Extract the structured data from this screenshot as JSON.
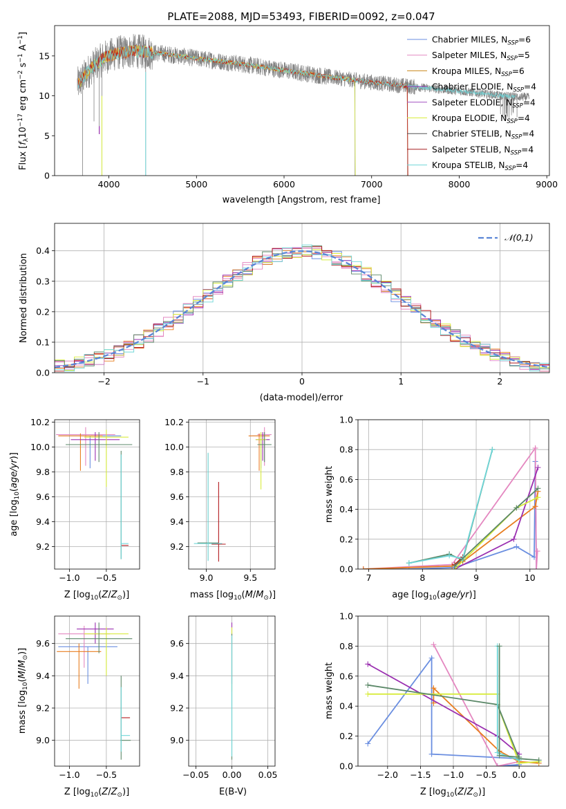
{
  "figure": {
    "title": "PLATE=2088, MJD=53493, FIBERID=0092, z=0.047"
  },
  "colors": {
    "chabrier_miles": "#6a8ee0",
    "salpeter_miles": "#e487c0",
    "kroupa_miles": "#e87d1f",
    "chabrier_elodie": "#9a2fb0",
    "salpeter_elodie": "#e487c0",
    "kroupa_elodie": "#d8ec3c",
    "chabrier_stelib": "#5b8868",
    "salpeter_stelib": "#b3191c",
    "kroupa_stelib": "#6fd6d8",
    "spectrum": "#808080"
  },
  "chart_data": [
    {
      "id": "spectrum",
      "type": "line",
      "title": "PLATE=2088, MJD=53493, FIBERID=0092, z=0.047",
      "xlabel": "wavelength [Angstrom, rest frame]",
      "ylabel": "Flux [f_λ 10^-17 erg cm^-2 s^-1 A^-1]",
      "xlim": [
        3380,
        9030
      ],
      "ylim": [
        0,
        18.8
      ],
      "xticks": [
        4000,
        5000,
        6000,
        7000,
        8000,
        9000
      ],
      "yticks": [
        0,
        5,
        10,
        15
      ],
      "grid": false,
      "legend_loc": "upper right",
      "legend": [
        "Chabrier MILES, N_SSP=6",
        "Salpeter MILES, N_SSP=5",
        "Kroupa MILES, N_SSP=6",
        "Chabrier ELODIE, N_SSP=4",
        "Salpeter ELODIE, N_SSP=4",
        "Kroupa ELODIE, N_SSP=4",
        "Chabrier STELIB, N_SSP=4",
        "Salpeter STELIB, N_SSP=4",
        "Kroupa STELIB, N_SSP=4"
      ],
      "continuum": {
        "x": [
          3650,
          3800,
          3950,
          4100,
          4300,
          4600,
          5000,
          5500,
          6000,
          6500,
          7000,
          7500,
          8000,
          8500,
          8800
        ],
        "y": [
          11.5,
          13.5,
          14.8,
          15.4,
          15.6,
          15.3,
          14.7,
          14.0,
          13.2,
          12.4,
          11.7,
          11.1,
          10.6,
          10.0,
          9.8
        ]
      },
      "absorption_features": [
        {
          "x": 3700,
          "y": 0.0
        },
        {
          "x": 3830,
          "y": 6.8
        },
        {
          "x": 3890,
          "y": 5.2
        },
        {
          "x": 3920,
          "y": 0.0
        },
        {
          "x": 4420,
          "y": 0.0
        },
        {
          "x": 6810,
          "y": 0.0
        },
        {
          "x": 7410,
          "y": 0.0
        },
        {
          "x": 8500,
          "y": 7.6
        },
        {
          "x": 8550,
          "y": 7.4
        },
        {
          "x": 8660,
          "y": 7.3
        }
      ]
    },
    {
      "id": "residuals",
      "type": "line",
      "xlabel": "(data-model)/error",
      "ylabel": "Normed distribution",
      "xlim": [
        -2.5,
        2.5
      ],
      "ylim": [
        0,
        0.49
      ],
      "xticks": [
        -2,
        -1,
        0,
        1,
        2
      ],
      "yticks": [
        0.0,
        0.1,
        0.2,
        0.3,
        0.4
      ],
      "grid": true,
      "legend_loc": "upper right",
      "legend": [
        "𝒩(0,1)"
      ],
      "bins": {
        "start": -2.5,
        "width": 0.1,
        "count": 50
      },
      "normal": {
        "mean": 0,
        "std": 1
      }
    },
    {
      "id": "age_vs_Z",
      "type": "scatter",
      "xlabel": "Z [log10(Z/Z⊙)]",
      "ylabel": "age [log10(age/yr)]",
      "xlim": [
        -1.2,
        -0.05
      ],
      "ylim": [
        9.02,
        10.22
      ],
      "xticks": [
        -1.0,
        -0.5
      ],
      "yticks": [
        9.2,
        9.4,
        9.6,
        9.8,
        10.0,
        10.2
      ],
      "grid": true,
      "points": [
        {
          "model": "chabrier_miles",
          "x": -0.72,
          "y": 10.09,
          "xerr": 0.42,
          "yerr": [
            0.26,
            0.0
          ]
        },
        {
          "model": "salpeter_miles",
          "x": -0.78,
          "y": 10.1,
          "xerr": 0.4,
          "yerr": [
            0.25,
            0.06
          ]
        },
        {
          "model": "kroupa_miles",
          "x": -0.85,
          "y": 10.09,
          "xerr": 0.3,
          "yerr": [
            0.28,
            0.02
          ]
        },
        {
          "model": "chabrier_elodie",
          "x": -0.65,
          "y": 10.06,
          "xerr": 0.33,
          "yerr": [
            0.17,
            0.06
          ]
        },
        {
          "model": "kroupa_elodie",
          "x": -0.5,
          "y": 10.08,
          "xerr": 0.3,
          "yerr": [
            0.4,
            0.06
          ]
        },
        {
          "model": "chabrier_stelib",
          "x": -0.6,
          "y": 10.02,
          "xerr": 0.45,
          "yerr": [
            0.14,
            0.1
          ]
        },
        {
          "model": "chabrier_stelib",
          "x": -0.3,
          "y": 9.22,
          "xerr": 0.0,
          "yerr": [
            0.12,
            0.75
          ]
        },
        {
          "model": "salpeter_stelib",
          "x": -0.25,
          "y": 9.21,
          "xerr": 0.05,
          "yerr": [
            0.0,
            0.0
          ]
        },
        {
          "model": "kroupa_stelib",
          "x": -0.3,
          "y": 9.22,
          "xerr": 0.0,
          "yerr": [
            0.12,
            0.72
          ]
        },
        {
          "model": "kroupa_stelib",
          "x": -0.25,
          "y": 9.225,
          "xerr": 0.05,
          "yerr": [
            0.0,
            0.0
          ]
        }
      ]
    },
    {
      "id": "age_vs_mass",
      "type": "scatter",
      "xlabel": "mass [log10(M/M⊙)]",
      "ylabel": "",
      "xlim": [
        8.8,
        9.78
      ],
      "ylim": [
        9.02,
        10.22
      ],
      "xticks": [
        9.0,
        9.5
      ],
      "yticks": [
        9.2,
        9.4,
        9.6,
        9.8,
        10.0,
        10.2
      ],
      "grid": true,
      "points": [
        {
          "model": "chabrier_miles",
          "x": 9.62,
          "y": 10.09,
          "xerr": 0.1,
          "yerr": [
            0.26,
            0.0
          ]
        },
        {
          "model": "salpeter_miles",
          "x": 9.66,
          "y": 10.1,
          "xerr": 0.08,
          "yerr": [
            0.25,
            0.06
          ]
        },
        {
          "model": "kroupa_miles",
          "x": 9.6,
          "y": 10.09,
          "xerr": 0.12,
          "yerr": [
            0.28,
            0.02
          ]
        },
        {
          "model": "chabrier_elodie",
          "x": 9.64,
          "y": 10.06,
          "xerr": 0.08,
          "yerr": [
            0.17,
            0.06
          ]
        },
        {
          "model": "kroupa_elodie",
          "x": 9.62,
          "y": 10.06,
          "xerr": 0.06,
          "yerr": [
            0.4,
            0.06
          ]
        },
        {
          "model": "chabrier_stelib",
          "x": 9.66,
          "y": 10.02,
          "xerr": 0.08,
          "yerr": [
            0.14,
            0.1
          ]
        },
        {
          "model": "chabrier_stelib",
          "x": 9.02,
          "y": 9.23,
          "xerr": 0.12,
          "yerr": [
            0.14,
            0.72
          ]
        },
        {
          "model": "salpeter_stelib",
          "x": 9.14,
          "y": 9.22,
          "xerr": 0.08,
          "yerr": [
            0.14,
            0.5
          ]
        },
        {
          "model": "kroupa_stelib",
          "x": 9.02,
          "y": 9.225,
          "xerr": 0.16,
          "yerr": [
            0.14,
            0.73
          ]
        }
      ]
    },
    {
      "id": "weight_vs_age",
      "type": "line",
      "xlabel": "age [log10(age/yr)]",
      "ylabel": "mass weight",
      "xlim": [
        6.8,
        10.35
      ],
      "ylim": [
        0,
        1.0
      ],
      "xticks": [
        7,
        8,
        9,
        10
      ],
      "yticks": [
        0.0,
        0.2,
        0.4,
        0.6,
        0.8,
        1.0
      ],
      "grid": true,
      "series": [
        {
          "model": "chabrier_miles",
          "x": [
            6.9,
            7.75,
            8.6,
            9.75,
            10.08,
            10.1,
            10.12
          ],
          "y": [
            0.0,
            0.0,
            0.01,
            0.15,
            0.08,
            0.72,
            0.0
          ]
        },
        {
          "model": "salpeter_miles",
          "x": [
            6.9,
            8.55,
            10.1,
            10.12,
            10.14
          ],
          "y": [
            0.0,
            0.03,
            0.81,
            0.0,
            0.12
          ]
        },
        {
          "model": "kroupa_miles",
          "x": [
            6.9,
            8.55,
            8.75,
            10.1,
            10.15
          ],
          "y": [
            0.0,
            0.02,
            0.05,
            0.42,
            0.52
          ]
        },
        {
          "model": "chabrier_elodie",
          "x": [
            8.6,
            9.7,
            10.15
          ],
          "y": [
            0.0,
            0.2,
            0.68
          ]
        },
        {
          "model": "kroupa_elodie",
          "x": [
            8.6,
            9.75,
            10.15
          ],
          "y": [
            0.0,
            0.41,
            0.48
          ]
        },
        {
          "model": "chabrier_stelib",
          "x": [
            7.75,
            8.5,
            8.75,
            9.3
          ],
          "y": [
            0.04,
            0.1,
            0.06,
            0.8
          ]
        },
        {
          "model": "salpeter_stelib",
          "x": [
            8.6,
            8.75
          ],
          "y": [
            0.03,
            0.08
          ]
        },
        {
          "model": "kroupa_stelib",
          "x": [
            7.75,
            8.5,
            8.75,
            9.3
          ],
          "y": [
            0.04,
            0.09,
            0.07,
            0.8
          ]
        },
        {
          "model": "chabrier_stelib",
          "x": [
            8.6,
            9.75,
            10.15
          ],
          "y": [
            0.02,
            0.41,
            0.54
          ]
        }
      ]
    },
    {
      "id": "mass_vs_Z",
      "type": "scatter",
      "xlabel": "Z [log10(Z/Z⊙)]",
      "ylabel": "mass [log10(M/M⊙)]",
      "xlim": [
        -1.2,
        -0.05
      ],
      "ylim": [
        8.84,
        9.77
      ],
      "xticks": [
        -1.0,
        -0.5
      ],
      "yticks": [
        9.0,
        9.2,
        9.4,
        9.6
      ],
      "grid": true,
      "points": [
        {
          "model": "chabrier_miles",
          "x": -0.75,
          "y": 9.58,
          "xerr": 0.4,
          "yerr": [
            0.23,
            0.0
          ]
        },
        {
          "model": "salpeter_miles",
          "x": -0.8,
          "y": 9.66,
          "xerr": 0.35,
          "yerr": [
            0.21,
            0.05
          ]
        },
        {
          "model": "kroupa_miles",
          "x": -0.87,
          "y": 9.55,
          "xerr": 0.3,
          "yerr": [
            0.23,
            0.05
          ]
        },
        {
          "model": "chabrier_elodie",
          "x": -0.65,
          "y": 9.69,
          "xerr": 0.25,
          "yerr": [
            0.09,
            0.04
          ]
        },
        {
          "model": "kroupa_elodie",
          "x": -0.5,
          "y": 9.66,
          "xerr": 0.3,
          "yerr": [
            0.26,
            0.04
          ]
        },
        {
          "model": "chabrier_stelib",
          "x": -0.6,
          "y": 9.63,
          "xerr": 0.45,
          "yerr": [
            0.09,
            0.1
          ]
        },
        {
          "model": "chabrier_stelib",
          "x": -0.3,
          "y": 9.0,
          "xerr": 0.0,
          "yerr": [
            0.12,
            0.4
          ]
        },
        {
          "model": "chabrier_stelib",
          "x": -0.24,
          "y": 9.0,
          "xerr": 0.07,
          "yerr": [
            0.0,
            0.0
          ]
        },
        {
          "model": "salpeter_stelib",
          "x": -0.24,
          "y": 9.14,
          "xerr": 0.06,
          "yerr": [
            0.0,
            0.0
          ]
        },
        {
          "model": "kroupa_stelib",
          "x": -0.3,
          "y": 9.03,
          "xerr": 0.0,
          "yerr": [
            0.1,
            0.3
          ]
        },
        {
          "model": "kroupa_stelib",
          "x": -0.24,
          "y": 9.03,
          "xerr": 0.06,
          "yerr": [
            0.0,
            0.0
          ]
        }
      ]
    },
    {
      "id": "mass_vs_ebv",
      "type": "scatter",
      "xlabel": "E(B-V)",
      "ylabel": "",
      "xlim": [
        -0.06,
        0.06
      ],
      "ylim": [
        8.84,
        9.77
      ],
      "xticks": [
        -0.05,
        0.0,
        0.05
      ],
      "yticks": [
        9.0,
        9.2,
        9.4,
        9.6
      ],
      "grid": true,
      "points": [
        {
          "model": "chabrier_elodie",
          "x": 0.0,
          "y": 9.55,
          "xerr": 0.0,
          "yerr": [
            0.2,
            0.18
          ]
        },
        {
          "model": "kroupa_elodie",
          "x": 0.0,
          "y": 9.5,
          "xerr": 0.0,
          "yerr": [
            0.2,
            0.2
          ]
        },
        {
          "model": "chabrier_stelib",
          "x": 0.0,
          "y": 9.3,
          "xerr": 0.0,
          "yerr": [
            0.42,
            0.36
          ]
        },
        {
          "model": "kroupa_stelib",
          "x": 0.0,
          "y": 9.25,
          "xerr": 0.0,
          "yerr": [
            0.35,
            0.4
          ]
        }
      ]
    },
    {
      "id": "weight_vs_Z",
      "type": "line",
      "xlabel": "Z [log10(Z/Z⊙)]",
      "ylabel": "mass weight",
      "xlim": [
        -2.45,
        0.45
      ],
      "ylim": [
        0,
        1.0
      ],
      "xticks": [
        -2.0,
        -1.5,
        -1.0,
        -0.5,
        0.0
      ],
      "yticks": [
        0.0,
        0.2,
        0.4,
        0.6,
        0.8,
        1.0
      ],
      "grid": true,
      "series": [
        {
          "model": "chabrier_miles",
          "x": [
            -2.3,
            -1.33,
            -1.33,
            0.0,
            0.0,
            -0.33,
            0.0
          ],
          "y": [
            0.15,
            0.72,
            0.08,
            0.05,
            0.0,
            0.0,
            0.01
          ]
        },
        {
          "model": "salpeter_miles",
          "x": [
            -1.3,
            -0.33,
            0.0
          ],
          "y": [
            0.81,
            0.0,
            0.03
          ]
        },
        {
          "model": "kroupa_miles",
          "x": [
            -1.3,
            -1.3,
            -0.3,
            0.0,
            0.3
          ],
          "y": [
            0.42,
            0.52,
            0.1,
            0.03,
            0.02
          ]
        },
        {
          "model": "chabrier_elodie",
          "x": [
            -2.3,
            -0.33,
            0.0
          ],
          "y": [
            0.68,
            0.2,
            0.08
          ]
        },
        {
          "model": "kroupa_elodie",
          "x": [
            -2.3,
            -0.33,
            -0.33,
            0.0,
            0.3
          ],
          "y": [
            0.48,
            0.48,
            0.41,
            0.02,
            0.03
          ]
        },
        {
          "model": "chabrier_stelib",
          "x": [
            -2.3,
            -0.33,
            0.0,
            0.3
          ],
          "y": [
            0.54,
            0.41,
            0.05,
            0.04
          ]
        },
        {
          "model": "kroupa_stelib",
          "x": [
            -0.33,
            -0.33,
            0.0
          ],
          "y": [
            0.8,
            0.09,
            0.04
          ]
        },
        {
          "model": "chabrier_stelib",
          "x": [
            -0.3,
            -0.3,
            0.0
          ],
          "y": [
            0.8,
            0.07,
            0.06
          ]
        }
      ]
    }
  ]
}
